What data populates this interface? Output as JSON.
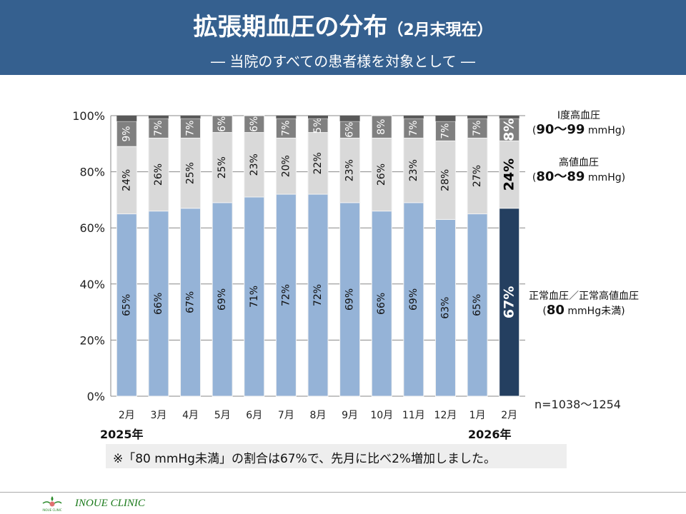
{
  "header": {
    "title": "拡張期血圧の分布",
    "title_suffix": "（2月末現在）",
    "subtitle": "―  当院のすべての患者様を対象として  ―"
  },
  "legend": {
    "stage1": {
      "label": "Ⅰ度高血圧",
      "range": "90～99",
      "unit": "mmHg"
    },
    "high_normal": {
      "label": "高値血圧",
      "range": "80～89",
      "unit": "mmHg"
    },
    "normal": {
      "label": "正常血圧／正常高値血圧",
      "range": "80",
      "unit": "mmHg未満"
    }
  },
  "sample_size": "n=1038～1254",
  "year_labels": [
    "2025年",
    "2026年"
  ],
  "note": "※「80 mmHg未満」の割合は67%で、先月に比べ2%増加しました。",
  "footer": {
    "clinic": "INOUE CLINIC",
    "logo_text": "INOUE CLINIC"
  },
  "colors": {
    "normal": "#95b3d7",
    "normal_latest": "#243f60",
    "high_normal": "#d9d9d9",
    "stage1": "#808080",
    "other": "#595959",
    "header": "#35608f"
  },
  "chart_data": {
    "type": "bar",
    "stacked": true,
    "orientation": "vertical",
    "categories": [
      "2月",
      "3月",
      "4月",
      "5月",
      "6月",
      "7月",
      "8月",
      "9月",
      "10月",
      "11月",
      "12月",
      "1月",
      "2月"
    ],
    "series": [
      {
        "name": "正常血圧／正常高値血圧 (80 mmHg未満)",
        "values": [
          65,
          66,
          67,
          69,
          71,
          72,
          72,
          69,
          66,
          69,
          63,
          65,
          67
        ]
      },
      {
        "name": "高値血圧 (80～89 mmHg)",
        "values": [
          24,
          26,
          25,
          25,
          23,
          20,
          22,
          23,
          26,
          23,
          28,
          27,
          24
        ]
      },
      {
        "name": "Ⅰ度高血圧 (90～99 mmHg)",
        "values": [
          9,
          7,
          7,
          6,
          6,
          7,
          5,
          6,
          8,
          7,
          7,
          7,
          8
        ]
      }
    ],
    "yticks": [
      "0%",
      "20%",
      "40%",
      "60%",
      "80%",
      "100%"
    ],
    "ylim": [
      0,
      100
    ],
    "grid": true,
    "legend": "right"
  }
}
